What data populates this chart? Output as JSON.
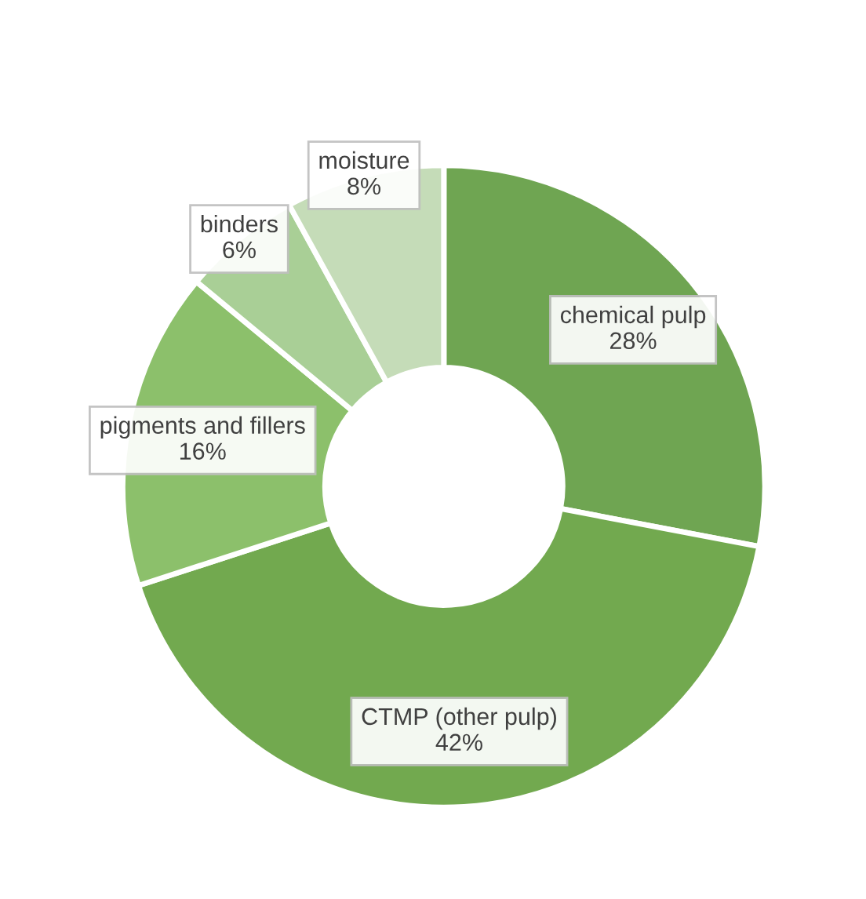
{
  "chart_data": {
    "type": "donut",
    "categories": [
      "chemical pulp",
      "CTMP (other pulp)",
      "pigments and fillers",
      "binders",
      "moisture"
    ],
    "values": [
      28,
      42,
      16,
      6,
      8
    ],
    "value_labels": [
      "28%",
      "42%",
      "16%",
      "6%",
      "8%"
    ],
    "colors": [
      "#6fa552",
      "#72a94f",
      "#8cc06b",
      "#a9cf96",
      "#c5dcb8"
    ],
    "legend": false
  }
}
